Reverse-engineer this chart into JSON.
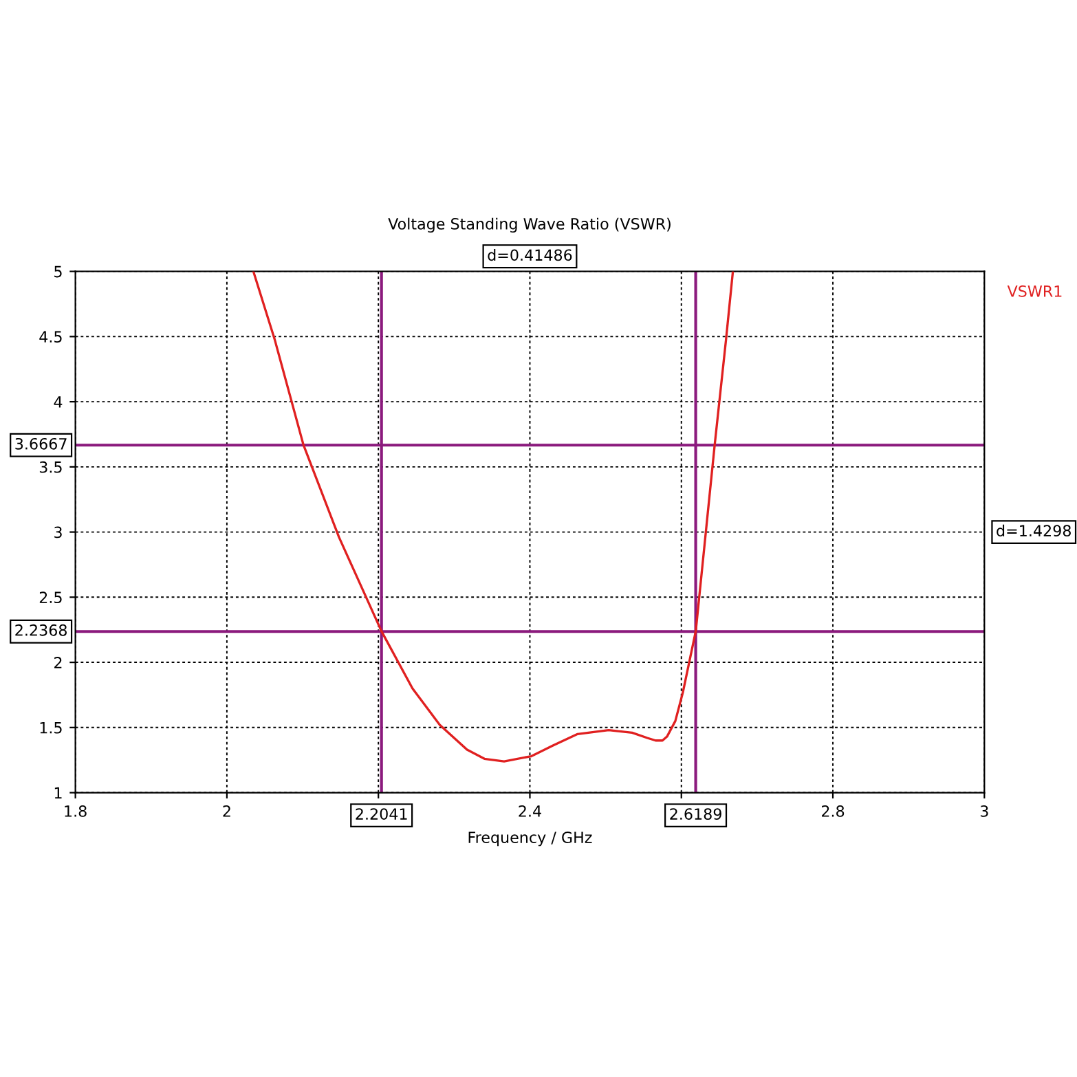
{
  "chart_data": {
    "type": "line",
    "title": "Voltage Standing Wave Ratio (VSWR)",
    "xlabel": "Frequency / GHz",
    "x": [
      2.035,
      2.063,
      2.101,
      2.148,
      2.204,
      2.245,
      2.281,
      2.317,
      2.34,
      2.366,
      2.402,
      2.43,
      2.463,
      2.504,
      2.535,
      2.555,
      2.566,
      2.575,
      2.581,
      2.592,
      2.602,
      2.619,
      2.644,
      2.659,
      2.668
    ],
    "series": [
      {
        "name": "VSWR1",
        "color": "#e02020",
        "values": [
          5.0,
          4.48,
          3.67,
          2.96,
          2.24,
          1.8,
          1.52,
          1.33,
          1.26,
          1.24,
          1.28,
          1.36,
          1.45,
          1.48,
          1.46,
          1.42,
          1.4,
          1.4,
          1.43,
          1.55,
          1.77,
          2.24,
          3.67,
          4.48,
          5.0
        ]
      }
    ],
    "xlim": [
      1.8,
      3
    ],
    "xticks": [
      1.8,
      2,
      {
        "value": 2.2,
        "label": null
      },
      2.4,
      {
        "value": 2.6,
        "label": null
      },
      2.8,
      3
    ],
    "ylim": [
      1,
      5
    ],
    "yticks": [
      1,
      1.5,
      2,
      2.5,
      3,
      3.5,
      4,
      4.5,
      5
    ],
    "ref_lines": [
      {
        "axis": "x",
        "value": 2.2041,
        "label": "2.2041",
        "color": "#8b1a7d"
      },
      {
        "axis": "x",
        "value": 2.6189,
        "label": "2.6189",
        "color": "#8b1a7d"
      },
      {
        "axis": "y",
        "value": 3.6667,
        "label": "3.6667",
        "color": "#8b1a7d"
      },
      {
        "axis": "y",
        "value": 2.2368,
        "label": "2.2368",
        "color": "#8b1a7d"
      }
    ],
    "annotations": [
      "d=0.41486",
      "d=1.4298"
    ],
    "grid": true,
    "legend": "right",
    "line_style": "solid",
    "marker": "none"
  }
}
